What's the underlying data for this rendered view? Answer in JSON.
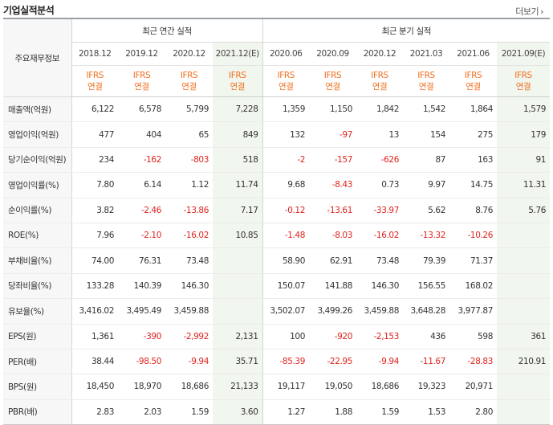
{
  "title": "기업실적분석",
  "more_label": "더보기",
  "more_icon": "chevron-right-icon",
  "colors": {
    "negative": "#e0231d",
    "ifrs": "#f07121",
    "estimate_bg": "#f1f6ee",
    "label_bg": "#f7f7f7"
  },
  "table": {
    "row_header_label": "주요재무정보",
    "annual_group_label": "최근 연간 실적",
    "quarterly_group_label": "최근 분기 실적",
    "periods": [
      "2018.12",
      "2019.12",
      "2020.12",
      "2021.12(E)",
      "2020.06",
      "2020.09",
      "2020.12",
      "2021.03",
      "2021.06",
      "2021.09(E)"
    ],
    "ifrs_top": "IFRS",
    "ifrs_bottom": "연결",
    "rows": [
      {
        "label": "매출액(억원)",
        "values": [
          "6,122",
          "6,578",
          "5,799",
          "7,228",
          "1,359",
          "1,150",
          "1,842",
          "1,542",
          "1,864",
          "1,579"
        ]
      },
      {
        "label": "영업이익(억원)",
        "values": [
          "477",
          "404",
          "65",
          "849",
          "132",
          "-97",
          "13",
          "154",
          "275",
          "179"
        ]
      },
      {
        "label": "당기순이익(억원)",
        "values": [
          "234",
          "-162",
          "-803",
          "518",
          "-2",
          "-157",
          "-626",
          "87",
          "163",
          "91"
        ]
      },
      {
        "label": "영업이익률(%)",
        "values": [
          "7.80",
          "6.14",
          "1.12",
          "11.74",
          "9.68",
          "-8.43",
          "0.73",
          "9.97",
          "14.75",
          "11.31"
        ]
      },
      {
        "label": "순이익률(%)",
        "values": [
          "3.82",
          "-2.46",
          "-13.86",
          "7.17",
          "-0.12",
          "-13.61",
          "-33.97",
          "5.62",
          "8.76",
          "5.76"
        ]
      },
      {
        "label": "ROE(%)",
        "values": [
          "7.96",
          "-2.10",
          "-16.02",
          "10.85",
          "-1.48",
          "-8.03",
          "-16.02",
          "-13.32",
          "-10.26",
          ""
        ]
      },
      {
        "label": "부채비율(%)",
        "values": [
          "74.00",
          "76.31",
          "73.48",
          "",
          "58.90",
          "62.91",
          "73.48",
          "79.39",
          "71.37",
          ""
        ]
      },
      {
        "label": "당좌비율(%)",
        "values": [
          "133.28",
          "140.39",
          "146.30",
          "",
          "150.07",
          "141.88",
          "146.30",
          "156.55",
          "168.02",
          ""
        ]
      },
      {
        "label": "유보율(%)",
        "values": [
          "3,416.02",
          "3,495.49",
          "3,459.88",
          "",
          "3,502.07",
          "3,499.26",
          "3,459.88",
          "3,648.28",
          "3,977.87",
          ""
        ]
      },
      {
        "label": "EPS(원)",
        "values": [
          "1,361",
          "-390",
          "-2,992",
          "2,131",
          "100",
          "-920",
          "-2,153",
          "436",
          "598",
          "361"
        ]
      },
      {
        "label": "PER(배)",
        "values": [
          "38.44",
          "-98.50",
          "-9.94",
          "35.71",
          "-85.39",
          "-22.95",
          "-9.94",
          "-11.67",
          "-28.83",
          "210.91"
        ]
      },
      {
        "label": "BPS(원)",
        "values": [
          "18,450",
          "18,970",
          "18,686",
          "21,133",
          "19,117",
          "19,050",
          "18,686",
          "19,323",
          "20,971",
          ""
        ]
      },
      {
        "label": "PBR(배)",
        "values": [
          "2.83",
          "2.03",
          "1.59",
          "3.60",
          "1.27",
          "1.88",
          "1.59",
          "1.53",
          "2.80",
          ""
        ]
      }
    ]
  }
}
